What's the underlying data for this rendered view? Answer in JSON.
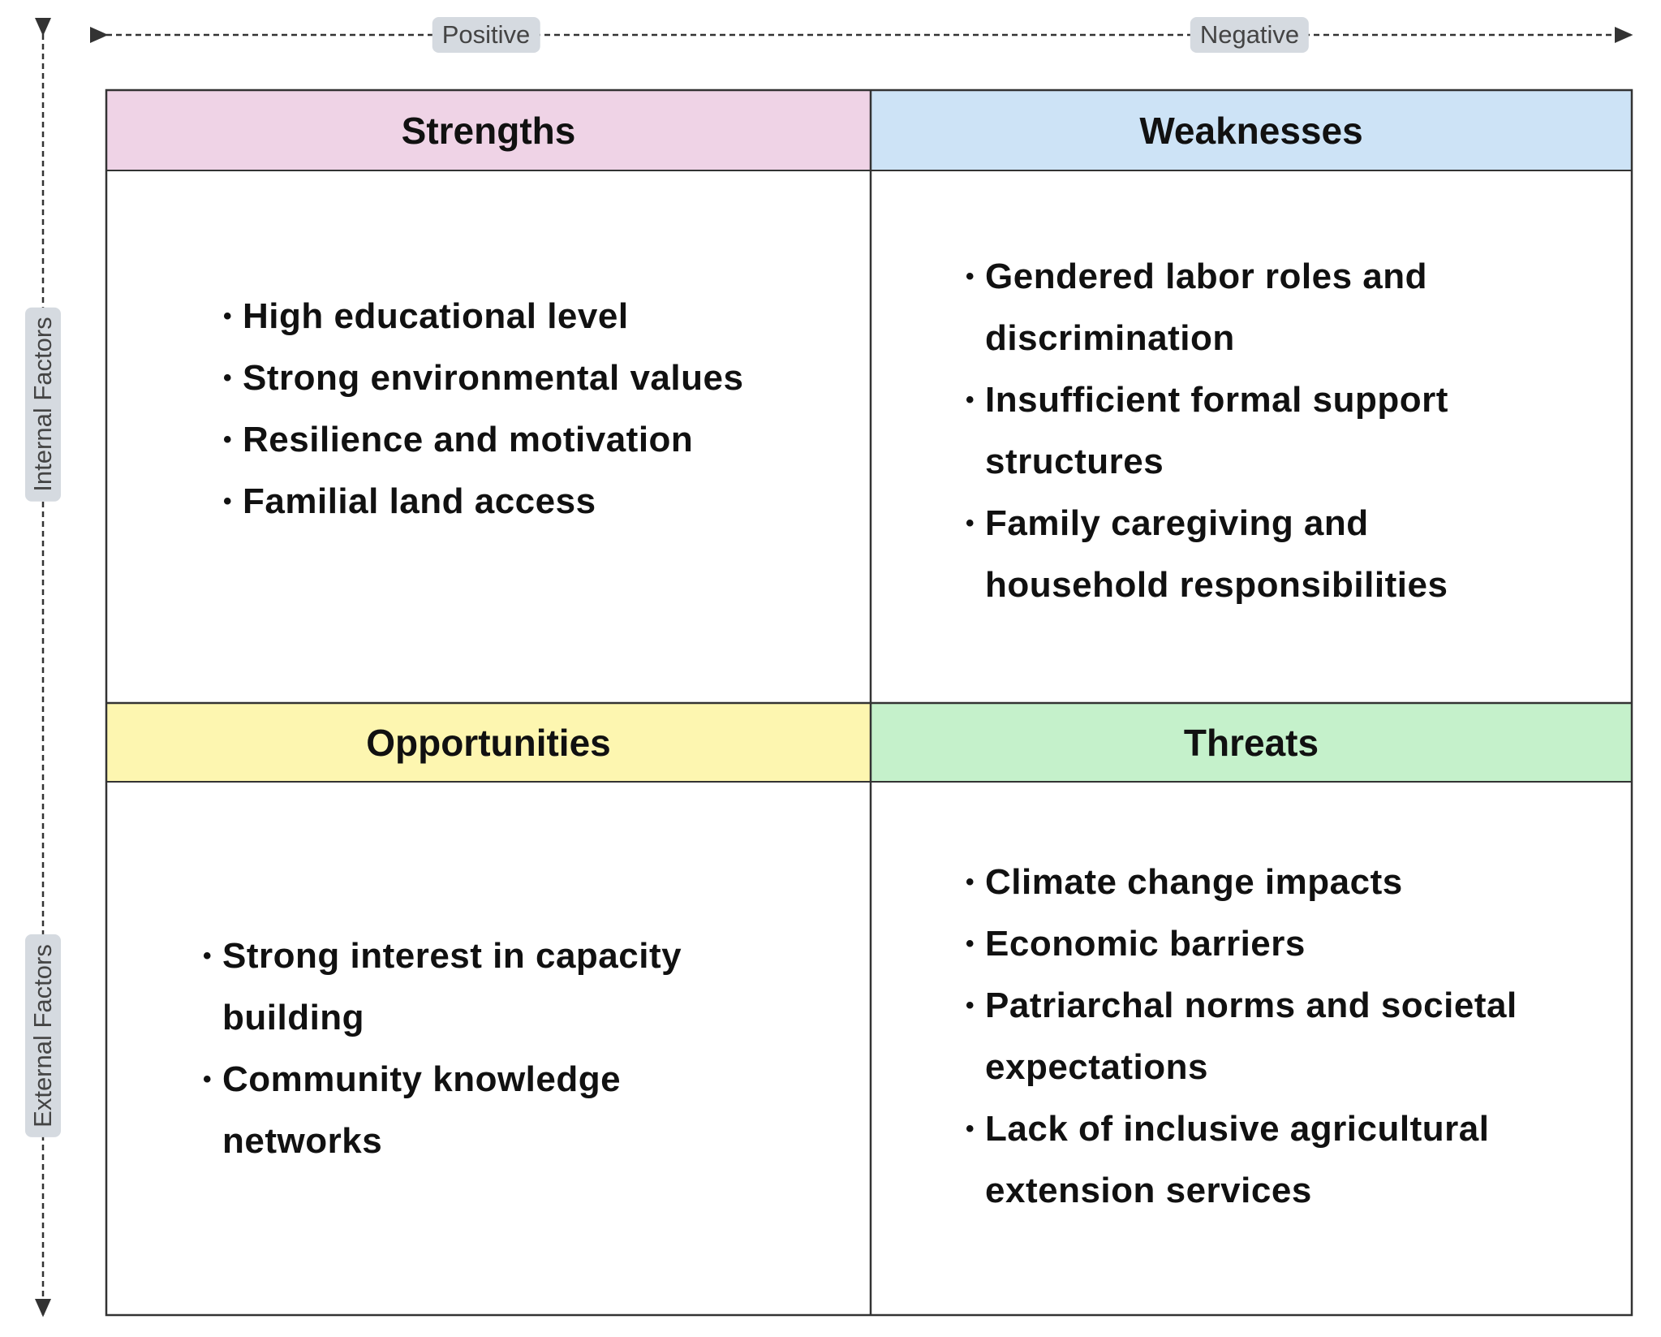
{
  "axes": {
    "top_left": "Positive",
    "top_right": "Negative",
    "side_top": "Internal Factors",
    "side_bottom": "External Factors"
  },
  "quadrants": [
    {
      "title": "Strengths",
      "items": [
        [
          "High educational level"
        ],
        [
          "Strong environmental values"
        ],
        [
          "Resilience and motivation"
        ],
        [
          "Familial land access"
        ]
      ]
    },
    {
      "title": "Weaknesses",
      "items": [
        [
          "Gendered labor roles and",
          "discrimination"
        ],
        [
          "Insufficient formal support",
          "structures"
        ],
        [
          "Family caregiving and",
          "household responsibilities"
        ]
      ]
    },
    {
      "title": "Opportunities",
      "items": [
        [
          "Strong interest in capacity",
          "building"
        ],
        [
          "Community knowledge",
          "networks"
        ]
      ]
    },
    {
      "title": "Threats",
      "items": [
        [
          "Climate change impacts"
        ],
        [
          "Economic barriers"
        ],
        [
          "Patriarchal norms and societal",
          "expectations"
        ],
        [
          "Lack of inclusive agricultural",
          "extension services"
        ]
      ]
    }
  ]
}
